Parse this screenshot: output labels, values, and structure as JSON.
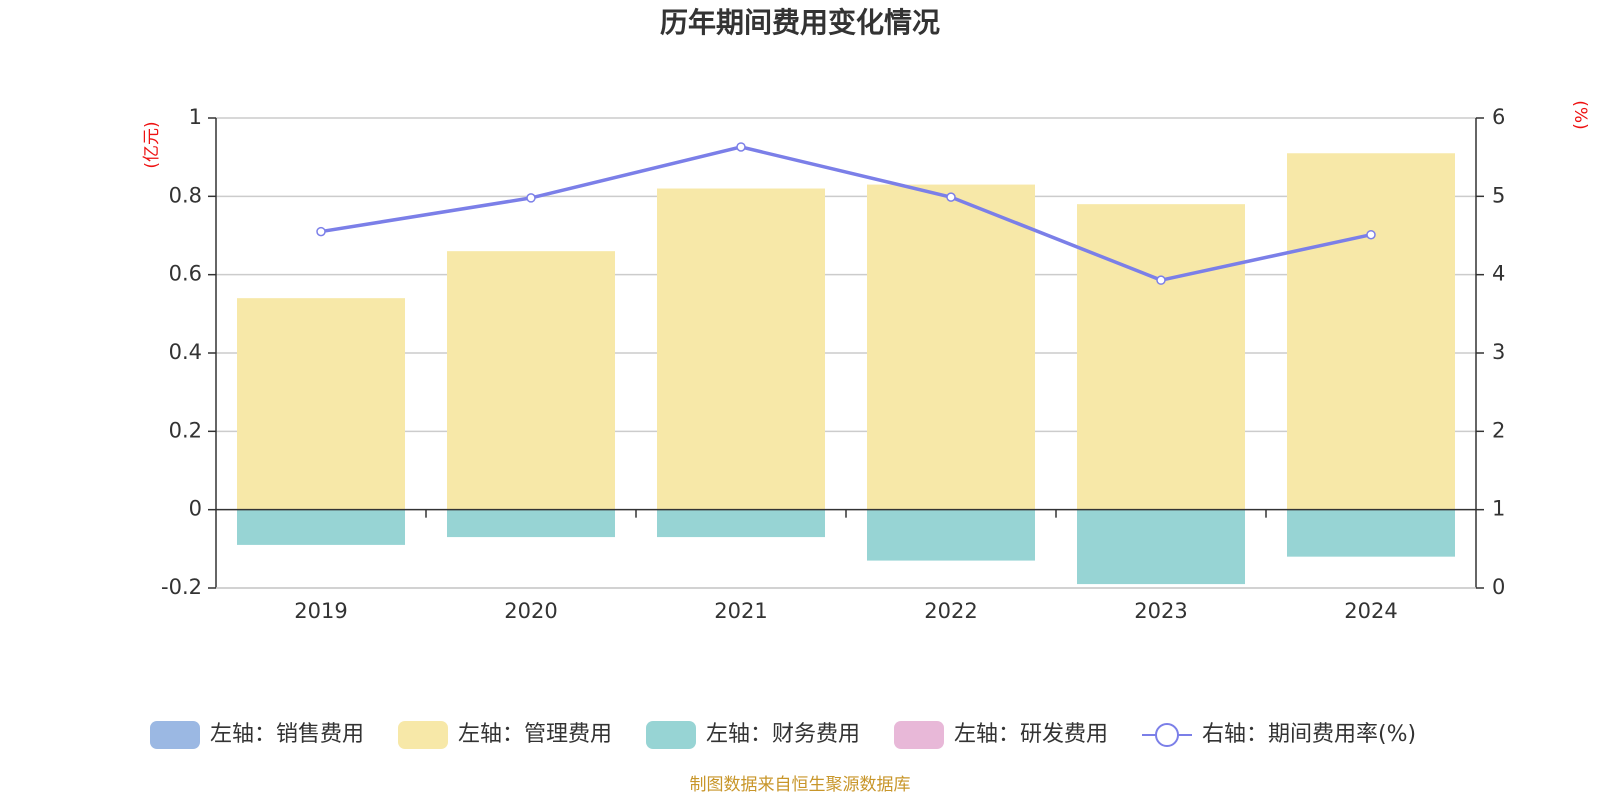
{
  "chart_data": {
    "type": "bar",
    "title": "历年期间费用变化情况",
    "categories": [
      "2019",
      "2020",
      "2021",
      "2022",
      "2023",
      "2024"
    ],
    "left_axis": {
      "unit": "(亿元)",
      "ylim": [
        -0.2,
        1
      ],
      "ticks": [
        "1",
        "0.8",
        "0.6",
        "0.4",
        "0.2",
        "0",
        "-0.2"
      ]
    },
    "right_axis": {
      "unit": "(%)",
      "ylim": [
        0,
        6
      ],
      "ticks": [
        "6",
        "5",
        "4",
        "3",
        "2",
        "1",
        "0"
      ]
    },
    "series": [
      {
        "name": "左轴：销售费用",
        "axis": "left",
        "type": "bar",
        "color": "#9bb8e3",
        "values": [
          0,
          0,
          0,
          0,
          0,
          0
        ]
      },
      {
        "name": "左轴：管理费用",
        "axis": "left",
        "type": "bar",
        "color": "#f7e8a8",
        "values": [
          0.54,
          0.66,
          0.82,
          0.83,
          0.78,
          0.91
        ]
      },
      {
        "name": "左轴：财务费用",
        "axis": "left",
        "type": "bar",
        "color": "#97d4d4",
        "values": [
          -0.09,
          -0.07,
          -0.07,
          -0.13,
          -0.19,
          -0.12
        ]
      },
      {
        "name": "左轴：研发费用",
        "axis": "left",
        "type": "bar",
        "color": "#e8b8d8",
        "values": [
          0,
          0,
          0,
          0,
          0,
          0
        ]
      },
      {
        "name": "右轴：期间费用率(%)",
        "axis": "right",
        "type": "line",
        "color": "#7b7fe8",
        "values": [
          4.55,
          4.98,
          5.63,
          4.99,
          3.93,
          4.51
        ]
      }
    ],
    "grid": true,
    "legend_position": "bottom"
  },
  "footer": {
    "source": "制图数据来自恒生聚源数据库"
  }
}
